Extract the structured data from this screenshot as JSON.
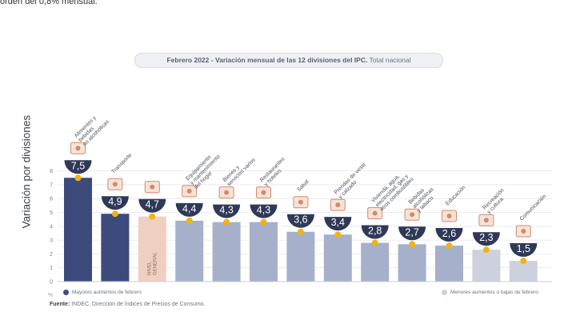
{
  "top_text": "orden del 0,8% mensual.",
  "title": {
    "bold": "Febrero 2022 - Variación mensual de las 12 divisiones del IPC.",
    "rest": " Total nacional"
  },
  "colors": {
    "dark_bar": "#3c4a7c",
    "mid_bar": "#a7b0ca",
    "light_bar": "#cdd1dd",
    "general_bar": "#efcfc1",
    "bubble": "#2f3957",
    "dot": "#f0b318"
  },
  "legend": {
    "left": "Mayores aumentos de febrero",
    "right": "Menores aumentos o bajas de febrero"
  },
  "source": {
    "label": "Fuente:",
    "text": " INDEC. Dirección de Índices de Precios de Consumo."
  },
  "pct_symbol": "%",
  "chart_data": {
    "type": "bar",
    "ylabel": "Variación por divisiones",
    "ylim": [
      0,
      8
    ],
    "yticks": [
      "0",
      "1",
      "2",
      "3",
      "4",
      "5",
      "6",
      "7",
      "8"
    ],
    "grid": true,
    "categories": [
      [
        "Alimentos y",
        "bebidas",
        "no alcohólicas"
      ],
      [
        "Transporte"
      ],
      [],
      [
        "Equipamiento",
        "y mantenimiento",
        "del hogar"
      ],
      [
        "Bienes y",
        "servicios varios"
      ],
      [
        "Restaurantes",
        "y hoteles"
      ],
      [
        "Salud"
      ],
      [
        "Prendas de vestir",
        "y calzado"
      ],
      [
        "Vivienda, agua,",
        "electricidad, gas y",
        "otros combustibles"
      ],
      [
        "Bebidas",
        "alcohólicas",
        "y tabaco"
      ],
      [
        "Educación"
      ],
      [
        "Recreación",
        "y cultura"
      ],
      [
        "Comunicación"
      ]
    ],
    "values": [
      7.5,
      4.9,
      4.7,
      4.4,
      4.3,
      4.3,
      3.6,
      3.4,
      2.8,
      2.7,
      2.6,
      2.3,
      1.5
    ],
    "value_labels": [
      "7,5",
      "4,9",
      "4,7",
      "4,4",
      "4,3",
      "4,3",
      "3,6",
      "3,4",
      "2,8",
      "2,7",
      "2,6",
      "2,3",
      "1,5"
    ],
    "bar_colors": [
      "dark",
      "dark",
      "general",
      "mid",
      "mid",
      "mid",
      "mid",
      "mid",
      "mid",
      "mid",
      "mid",
      "light",
      "light"
    ],
    "general_label": [
      "NIVEL",
      "GENERAL"
    ],
    "icons": [
      "grocery-bag-icon",
      "car-icon",
      "toolbox-icon",
      "stove-icon",
      "bottles-icon",
      "cutlery-icon",
      "medical-cross-icon",
      "shirt-icon",
      "lightbulb-icon",
      "wine-bottle-icon",
      "notebook-icon",
      "camera-icon",
      "smartphone-icon"
    ]
  }
}
